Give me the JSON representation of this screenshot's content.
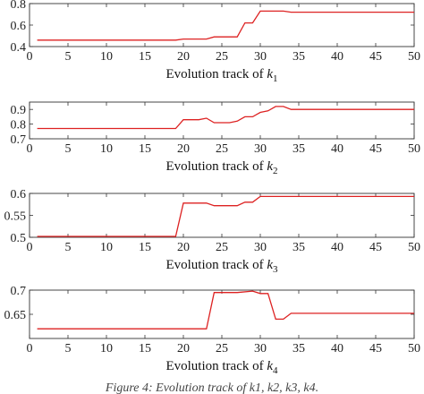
{
  "figure_caption": "Figure 4: Evolution track of k1, k2, k3, k4.",
  "chart_data": [
    {
      "type": "line",
      "xlabel_text": "Evolution track of ",
      "xlabel_symbol": "k",
      "xlabel_sub": "1",
      "xlim": [
        0,
        50
      ],
      "ylim": [
        0.4,
        0.8
      ],
      "xticks": [
        0,
        5,
        10,
        15,
        20,
        25,
        30,
        35,
        40,
        45,
        50
      ],
      "yticks": [
        0.4,
        0.6,
        0.8
      ],
      "ytick_labels": [
        "0.4",
        "0.6",
        "0.8"
      ],
      "grid": false,
      "color": "#dd2222",
      "steps": [
        [
          1,
          0.46
        ],
        [
          19,
          0.46
        ],
        [
          20,
          0.47
        ],
        [
          23,
          0.47
        ],
        [
          24,
          0.49
        ],
        [
          27,
          0.49
        ],
        [
          28,
          0.62
        ],
        [
          29,
          0.62
        ],
        [
          30,
          0.73
        ],
        [
          33,
          0.73
        ],
        [
          34,
          0.72
        ],
        [
          50,
          0.72
        ]
      ]
    },
    {
      "type": "line",
      "xlabel_text": "Evolution track of ",
      "xlabel_symbol": "k",
      "xlabel_sub": "2",
      "xlim": [
        0,
        50
      ],
      "ylim": [
        0.7,
        0.95
      ],
      "xticks": [
        0,
        5,
        10,
        15,
        20,
        25,
        30,
        35,
        40,
        45,
        50
      ],
      "yticks": [
        0.7,
        0.8,
        0.9
      ],
      "ytick_labels": [
        "0.7",
        "0.8",
        "0.9"
      ],
      "grid": false,
      "color": "#dd2222",
      "steps": [
        [
          1,
          0.77
        ],
        [
          19,
          0.77
        ],
        [
          20,
          0.83
        ],
        [
          22,
          0.83
        ],
        [
          23,
          0.84
        ],
        [
          24,
          0.81
        ],
        [
          26,
          0.81
        ],
        [
          27,
          0.82
        ],
        [
          28,
          0.85
        ],
        [
          29,
          0.85
        ],
        [
          30,
          0.88
        ],
        [
          31,
          0.89
        ],
        [
          32,
          0.92
        ],
        [
          33,
          0.92
        ],
        [
          34,
          0.9
        ],
        [
          50,
          0.9
        ]
      ]
    },
    {
      "type": "line",
      "xlabel_text": "Evolution track of ",
      "xlabel_symbol": "k",
      "xlabel_sub": "3",
      "xlim": [
        0,
        50
      ],
      "ylim": [
        0.5,
        0.6
      ],
      "xticks": [
        0,
        5,
        10,
        15,
        20,
        25,
        30,
        35,
        40,
        45,
        50
      ],
      "yticks": [
        0.5,
        0.55,
        0.6
      ],
      "ytick_labels": [
        "0.5",
        "0.55",
        "0.6"
      ],
      "grid": false,
      "color": "#dd2222",
      "steps": [
        [
          1,
          0.502
        ],
        [
          19,
          0.502
        ],
        [
          20,
          0.578
        ],
        [
          23,
          0.578
        ],
        [
          24,
          0.572
        ],
        [
          27,
          0.572
        ],
        [
          28,
          0.58
        ],
        [
          29,
          0.58
        ],
        [
          30,
          0.593
        ],
        [
          50,
          0.593
        ]
      ]
    },
    {
      "type": "line",
      "xlabel_text": "Evolution track of ",
      "xlabel_symbol": "k",
      "xlabel_sub": "4",
      "xlim": [
        0,
        50
      ],
      "ylim": [
        0.6,
        0.7
      ],
      "xticks": [
        0,
        5,
        10,
        15,
        20,
        25,
        30,
        35,
        40,
        45,
        50
      ],
      "yticks": [
        0.65,
        0.7
      ],
      "ytick_labels": [
        "0.65",
        "0.7"
      ],
      "grid": false,
      "color": "#dd2222",
      "steps": [
        [
          1,
          0.62
        ],
        [
          23,
          0.62
        ],
        [
          24,
          0.695
        ],
        [
          27,
          0.695
        ],
        [
          29,
          0.698
        ],
        [
          30,
          0.693
        ],
        [
          31,
          0.693
        ],
        [
          32,
          0.64
        ],
        [
          33,
          0.64
        ],
        [
          34,
          0.652
        ],
        [
          50,
          0.652
        ]
      ]
    }
  ]
}
